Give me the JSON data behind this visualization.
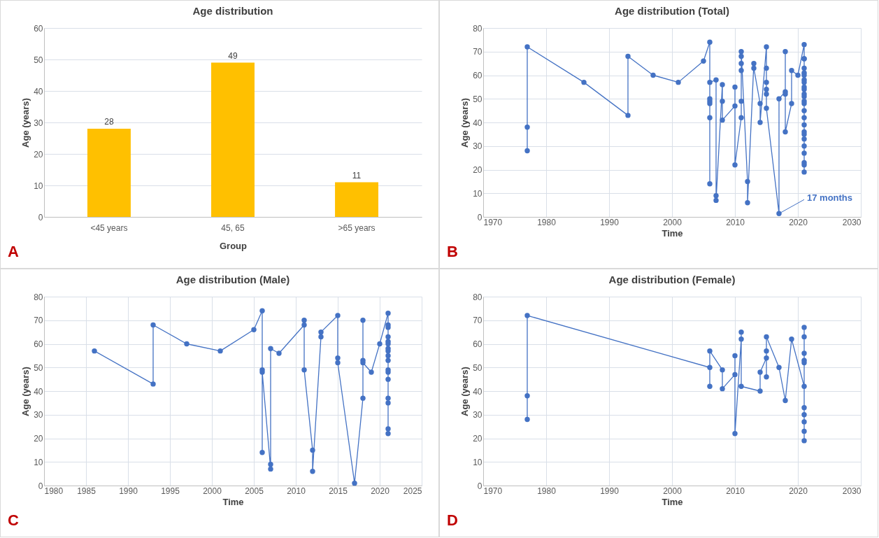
{
  "chart_data": [
    {
      "type": "bar",
      "title": "Age distribution",
      "xlabel": "Group",
      "ylabel": "Age (years)",
      "categories": [
        "<45 years",
        "45, 65",
        ">65 years"
      ],
      "values": [
        28,
        49,
        11
      ],
      "color": "#ffc000",
      "ylim": [
        0,
        60
      ],
      "yticks": [
        0,
        10,
        20,
        30,
        40,
        50,
        60
      ],
      "grid": "y",
      "data_labels": true,
      "annotations": [
        "A"
      ]
    },
    {
      "type": "line",
      "title": "Age distribution (Total)",
      "xlabel": "Time",
      "ylabel": "Age (years)",
      "marker": "circle",
      "grid": true,
      "xlim": [
        1970,
        2030
      ],
      "xticks": [
        1970,
        1980,
        1990,
        2000,
        2010,
        2020,
        2030
      ],
      "ylim": [
        0,
        80
      ],
      "yticks": [
        0,
        10,
        20,
        30,
        40,
        50,
        60,
        70,
        80
      ],
      "series": [
        {
          "color": "#4472c4",
          "x": [
            1977,
            1977,
            1977,
            1986,
            1993,
            1993,
            1997,
            2001,
            2005,
            2006,
            2006,
            2006,
            2006,
            2006,
            2006,
            2006,
            2007,
            2007,
            2007,
            2008,
            2008,
            2008,
            2010,
            2010,
            2010,
            2011,
            2011,
            2011,
            2011,
            2011,
            2011,
            2012,
            2012,
            2013,
            2013,
            2014,
            2014,
            2015,
            2015,
            2015,
            2015,
            2015,
            2015,
            2017,
            2017,
            2018,
            2018,
            2018,
            2018,
            2019,
            2019,
            2020,
            2021,
            2021,
            2021,
            2021,
            2021,
            2021,
            2021,
            2021,
            2021,
            2021,
            2021,
            2021,
            2021,
            2021,
            2021,
            2021,
            2021,
            2021,
            2021,
            2021,
            2021,
            2021,
            2021,
            2021,
            2021
          ],
          "values": [
            28,
            38,
            72,
            57,
            43,
            68,
            60,
            57,
            66,
            74,
            14,
            42,
            48,
            49,
            50,
            57,
            58,
            9,
            7,
            56,
            49,
            41,
            47,
            55,
            22,
            42,
            49,
            62,
            65,
            68,
            70,
            15,
            6,
            65,
            63,
            48,
            40,
            72,
            63,
            57,
            54,
            52,
            46,
            1.4,
            50,
            53,
            70,
            52,
            36,
            48,
            62,
            60,
            73,
            67,
            67,
            63,
            61,
            60,
            58,
            57,
            55,
            54,
            52,
            51,
            49,
            48,
            45,
            42,
            39,
            36,
            35,
            33,
            30,
            27,
            23,
            22,
            19
          ]
        }
      ],
      "annotations": [
        "B",
        {
          "text": "17 months",
          "x": 2017,
          "y": 1.4
        }
      ]
    },
    {
      "type": "line",
      "title": "Age distribution (Male)",
      "xlabel": "Time",
      "ylabel": "Age (years)",
      "marker": "circle",
      "grid": true,
      "xlim": [
        1980,
        2025
      ],
      "xticks": [
        1980,
        1985,
        1990,
        1995,
        2000,
        2005,
        2010,
        2015,
        2020,
        2025
      ],
      "ylim": [
        0,
        80
      ],
      "yticks": [
        0,
        10,
        20,
        30,
        40,
        50,
        60,
        70,
        80
      ],
      "series": [
        {
          "color": "#4472c4",
          "x": [
            1986,
            1993,
            1993,
            1997,
            2001,
            2005,
            2006,
            2006,
            2006,
            2006,
            2007,
            2007,
            2007,
            2008,
            2011,
            2011,
            2011,
            2012,
            2012,
            2013,
            2013,
            2015,
            2015,
            2015,
            2017,
            2018,
            2018,
            2018,
            2018,
            2019,
            2020,
            2021,
            2021,
            2021,
            2021,
            2021,
            2021,
            2021,
            2021,
            2021,
            2021,
            2021,
            2021,
            2021,
            2021,
            2021,
            2021,
            2021
          ],
          "values": [
            57,
            43,
            68,
            60,
            57,
            66,
            74,
            14,
            49,
            48,
            7,
            9,
            58,
            56,
            68,
            70,
            49,
            15,
            6,
            63,
            65,
            72,
            54,
            52,
            1,
            37,
            70,
            53,
            52,
            48,
            60,
            73,
            68,
            67,
            63,
            61,
            60,
            58,
            57,
            55,
            53,
            49,
            48,
            45,
            37,
            35,
            24,
            22
          ]
        }
      ],
      "annotations": [
        "C"
      ]
    },
    {
      "type": "line",
      "title": "Age distribution (Female)",
      "xlabel": "Time",
      "ylabel": "Age (years)",
      "marker": "circle",
      "grid": true,
      "xlim": [
        1970,
        2030
      ],
      "xticks": [
        1970,
        1980,
        1990,
        2000,
        2010,
        2020,
        2030
      ],
      "ylim": [
        0,
        80
      ],
      "yticks": [
        0,
        10,
        20,
        30,
        40,
        50,
        60,
        70,
        80
      ],
      "series": [
        {
          "color": "#4472c4",
          "x": [
            1977,
            1977,
            1977,
            2006,
            2006,
            2006,
            2008,
            2008,
            2010,
            2010,
            2010,
            2011,
            2011,
            2011,
            2014,
            2014,
            2015,
            2015,
            2015,
            2015,
            2017,
            2018,
            2019,
            2021,
            2021,
            2021,
            2021,
            2021,
            2021,
            2021,
            2021,
            2021,
            2021,
            2021
          ],
          "values": [
            28,
            38,
            72,
            50,
            42,
            57,
            49,
            41,
            47,
            55,
            22,
            62,
            65,
            42,
            40,
            48,
            54,
            46,
            57,
            63,
            50,
            36,
            62,
            42,
            67,
            63,
            56,
            53,
            52,
            33,
            30,
            27,
            23,
            19
          ]
        }
      ],
      "annotations": [
        "D"
      ]
    }
  ]
}
